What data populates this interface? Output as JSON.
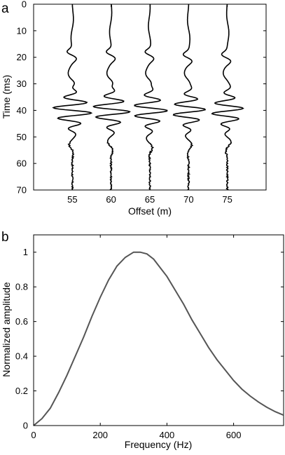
{
  "chart_data": [
    {
      "panel_label": "a",
      "type": "line",
      "subtype": "seismic-wiggle-gather",
      "xlabel": "Offset (m)",
      "ylabel": "Time (ms)",
      "y_reversed": true,
      "ylim": [
        0,
        70
      ],
      "xlim": [
        50,
        80
      ],
      "x_ticks": [
        55,
        60,
        65,
        70,
        75
      ],
      "y_ticks": [
        0,
        10,
        20,
        30,
        40,
        50,
        60,
        70
      ],
      "grid": false,
      "traces": [
        {
          "offset": 55,
          "arrival_time": 18,
          "strong_amp": 28
        },
        {
          "offset": 60,
          "arrival_time": 18,
          "strong_amp": 27
        },
        {
          "offset": 65,
          "arrival_time": 18,
          "strong_amp": 25
        },
        {
          "offset": 70,
          "arrival_time": 19,
          "strong_amp": 24
        },
        {
          "offset": 75,
          "arrival_time": 19,
          "strong_amp": 23
        }
      ]
    },
    {
      "panel_label": "b",
      "type": "line",
      "xlabel": "Frequency (Hz)",
      "ylabel": "Normalized amplitude",
      "xlim": [
        0,
        750
      ],
      "ylim": [
        0,
        1.1
      ],
      "x_ticks": [
        0,
        200,
        400,
        600
      ],
      "y_ticks": [
        0,
        0.2,
        0.4,
        0.6,
        0.8,
        1
      ],
      "grid": false,
      "series": [
        {
          "color": "#555555",
          "x": [
            0,
            25,
            50,
            75,
            100,
            125,
            150,
            175,
            200,
            225,
            250,
            275,
            300,
            320,
            340,
            360,
            380,
            400,
            425,
            450,
            475,
            500,
            525,
            550,
            575,
            600,
            625,
            650,
            675,
            700,
            725,
            750
          ],
          "y": [
            0.0,
            0.04,
            0.1,
            0.19,
            0.29,
            0.4,
            0.51,
            0.63,
            0.74,
            0.84,
            0.92,
            0.97,
            1.0,
            1.0,
            0.99,
            0.96,
            0.91,
            0.86,
            0.78,
            0.7,
            0.61,
            0.53,
            0.45,
            0.38,
            0.32,
            0.26,
            0.21,
            0.17,
            0.135,
            0.105,
            0.08,
            0.06
          ]
        }
      ]
    }
  ]
}
